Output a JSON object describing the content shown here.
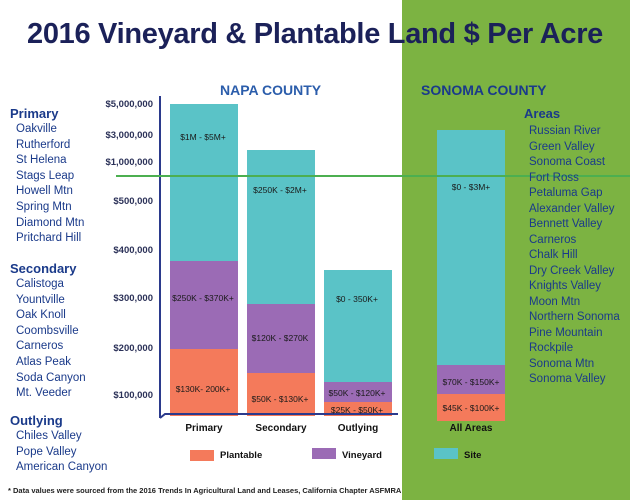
{
  "title": "2016 Vineyard & Plantable Land $ Per Acre",
  "napa_label": "NAPA COUNTY",
  "sonoma_label": "SONOMA COUNTY",
  "colors": {
    "plantable": "#f47a5b",
    "vineyard": "#9b6bb5",
    "site": "#5ac3c7",
    "sonoma_panel": "#7cb342",
    "divider": "#4caf50",
    "axis": "#2b3a8c",
    "text_blue": "#1a3a8a"
  },
  "chart_data": {
    "type": "bar",
    "stacked": true,
    "categories": [
      "Primary",
      "Secondary",
      "Outlying",
      "All Areas"
    ],
    "y_ticks": [
      "$100,000",
      "$200,000",
      "$300,000",
      "$400,000",
      "$500,000",
      "$1,000,000",
      "$3,000,000",
      "$5,000,000"
    ],
    "series": [
      {
        "name": "Plantable",
        "values": [
          null,
          null,
          null,
          null
        ],
        "labels": [
          "$130K- 200K+",
          "$50K - $130K+",
          "$25K - $50K+",
          "$45K - $100K+"
        ]
      },
      {
        "name": "Vineyard",
        "values": [
          null,
          null,
          null,
          null
        ],
        "labels": [
          "$250K - $370K+",
          "$120K - $270K",
          "$50K - $120K+",
          "$70K - $150K+"
        ]
      },
      {
        "name": "Site",
        "values": [
          null,
          null,
          null,
          null
        ],
        "labels": [
          "$1M - $5M+",
          "$250K - $2M+",
          "$0 - 350K+",
          "$0 - $3M+"
        ]
      }
    ],
    "legend": [
      "Plantable",
      "Vineyard",
      "Site"
    ],
    "grid": false,
    "legend_position": "bottom"
  },
  "napa_areas": {
    "primary": {
      "heading": "Primary",
      "items": [
        "Oakville",
        "Rutherford",
        "St Helena",
        "Stags Leap",
        "Howell Mtn",
        "Spring Mtn",
        "Diamond Mtn",
        "Pritchard Hill"
      ]
    },
    "secondary": {
      "heading": "Secondary",
      "items": [
        "Calistoga",
        "Yountville",
        "Oak Knoll",
        "Coombsville",
        "Carneros",
        "Atlas Peak",
        "Soda Canyon",
        "Mt. Veeder"
      ]
    },
    "outlying": {
      "heading": "Outlying",
      "items": [
        "Chiles Valley",
        "Pope Valley",
        "American Canyon"
      ]
    }
  },
  "sonoma_areas": {
    "heading": "Areas",
    "items": [
      "Russian River",
      "Green Valley",
      "Sonoma Coast",
      "Fort Ross",
      "Petaluma Gap",
      "Alexander Valley",
      "Bennett Valley",
      "Carneros",
      "Chalk Hill",
      "Dry Creek Valley",
      "Knights Valley",
      "Moon Mtn",
      "Northern Sonoma",
      "Pine Mountain",
      "Rockpile",
      "Sonoma Mtn",
      "Sonoma Valley"
    ]
  },
  "footnote": "* Data values were sourced from the 2016 Trends In Agricultural Land and Leases, California Chapter ASFMRA"
}
